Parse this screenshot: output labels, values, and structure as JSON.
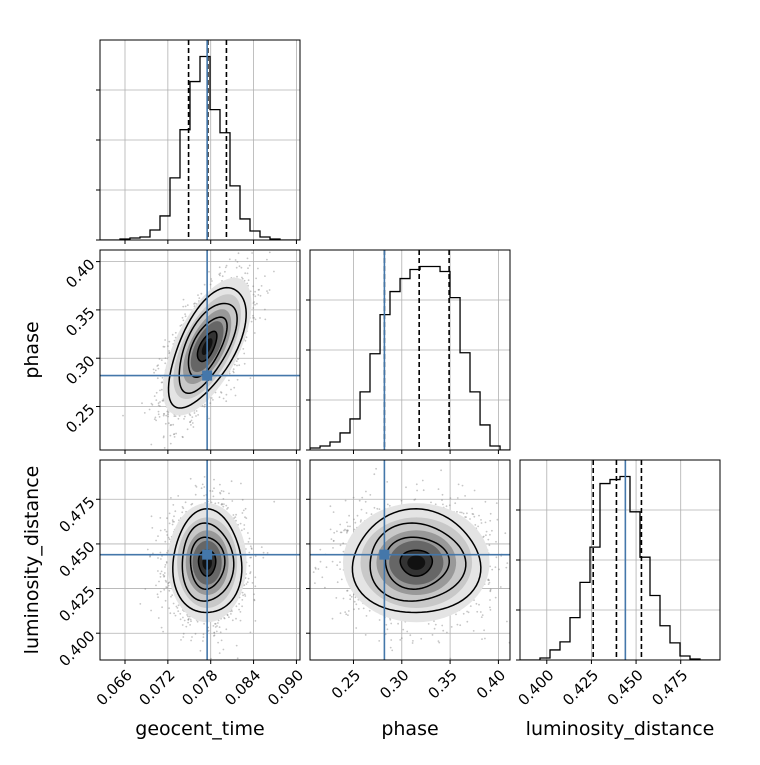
{
  "chart_data": {
    "type": "corner",
    "parameters": [
      "geocent_time",
      "phase",
      "luminosity_distance"
    ],
    "injection": {
      "geocent_time": 0.0775,
      "phase": 0.282,
      "luminosity_distance": 0.444
    },
    "truth_color": "#4477aa",
    "hist_color": "#000000",
    "axes": {
      "geocent_time": {
        "range": [
          0.0625,
          0.0905
        ],
        "ticks": [
          0.066,
          0.072,
          0.078,
          0.084,
          0.09
        ],
        "tick_labels": [
          "0.066",
          "0.072",
          "0.078",
          "0.084",
          "0.090"
        ]
      },
      "phase": {
        "range": [
          0.205,
          0.412
        ],
        "ticks": [
          0.25,
          0.3,
          0.35,
          0.4
        ],
        "tick_labels": [
          "0.25",
          "0.30",
          "0.35",
          "0.40"
        ]
      },
      "luminosity_distance": {
        "range": [
          0.385,
          0.497
        ],
        "ticks": [
          0.4,
          0.425,
          0.45,
          0.475
        ],
        "tick_labels": [
          "0.400",
          "0.425",
          "0.450",
          "0.475"
        ]
      }
    },
    "diagonal": [
      {
        "param": "geocent_time",
        "quantiles": [
          0.0749,
          0.0776,
          0.0802
        ],
        "bin_edges": [
          0.0625,
          0.0639,
          0.0653,
          0.0667,
          0.0681,
          0.0695,
          0.0709,
          0.0723,
          0.0737,
          0.0751,
          0.0765,
          0.0779,
          0.0793,
          0.0807,
          0.0821,
          0.0835,
          0.0849,
          0.0863,
          0.0877,
          0.0891,
          0.0905
        ],
        "counts": [
          0,
          0,
          1,
          2,
          3,
          10,
          24,
          62,
          110,
          158,
          183,
          130,
          107,
          54,
          21,
          9,
          3,
          1,
          0,
          0
        ]
      },
      {
        "param": "phase",
        "quantiles": [
          0.282,
          0.318,
          0.349
        ],
        "bin_edges": [
          0.205,
          0.2154,
          0.2257,
          0.2361,
          0.2464,
          0.2568,
          0.2671,
          0.2775,
          0.2878,
          0.2982,
          0.3085,
          0.3189,
          0.3292,
          0.3396,
          0.3499,
          0.3603,
          0.3706,
          0.381,
          0.3913,
          0.4017,
          0.412
        ],
        "counts": [
          2,
          4,
          8,
          17,
          31,
          58,
          96,
          135,
          158,
          171,
          180,
          183,
          183,
          178,
          152,
          97,
          58,
          25,
          4,
          0
        ]
      },
      {
        "param": "luminosity_distance",
        "quantiles": [
          0.426,
          0.439,
          0.453
        ],
        "bin_edges": [
          0.385,
          0.3906,
          0.3962,
          0.4018,
          0.4074,
          0.413,
          0.4186,
          0.4242,
          0.4298,
          0.4354,
          0.441,
          0.4466,
          0.4522,
          0.4578,
          0.4634,
          0.469,
          0.4746,
          0.4802,
          0.4858,
          0.4914,
          0.497
        ],
        "counts": [
          0,
          0,
          2,
          10,
          18,
          42,
          77,
          112,
          175,
          179,
          182,
          147,
          102,
          64,
          34,
          17,
          4,
          1,
          0,
          0
        ]
      }
    ],
    "pairs": [
      {
        "x": "geocent_time",
        "y": "phase",
        "mean": [
          0.0775,
          0.312
        ],
        "sd": [
          0.0027,
          0.031
        ],
        "corr": 0.62
      },
      {
        "x": "geocent_time",
        "y": "luminosity_distance",
        "mean": [
          0.0775,
          0.4395
        ],
        "sd": [
          0.0024,
          0.0145
        ],
        "corr": 0.0
      },
      {
        "x": "phase",
        "y": "luminosity_distance",
        "mean": [
          0.315,
          0.4395
        ],
        "sd": [
          0.033,
          0.0145
        ],
        "corr": 0.0
      }
    ],
    "contour_levels": [
      0.118,
      0.393,
      0.675,
      0.865
    ]
  }
}
